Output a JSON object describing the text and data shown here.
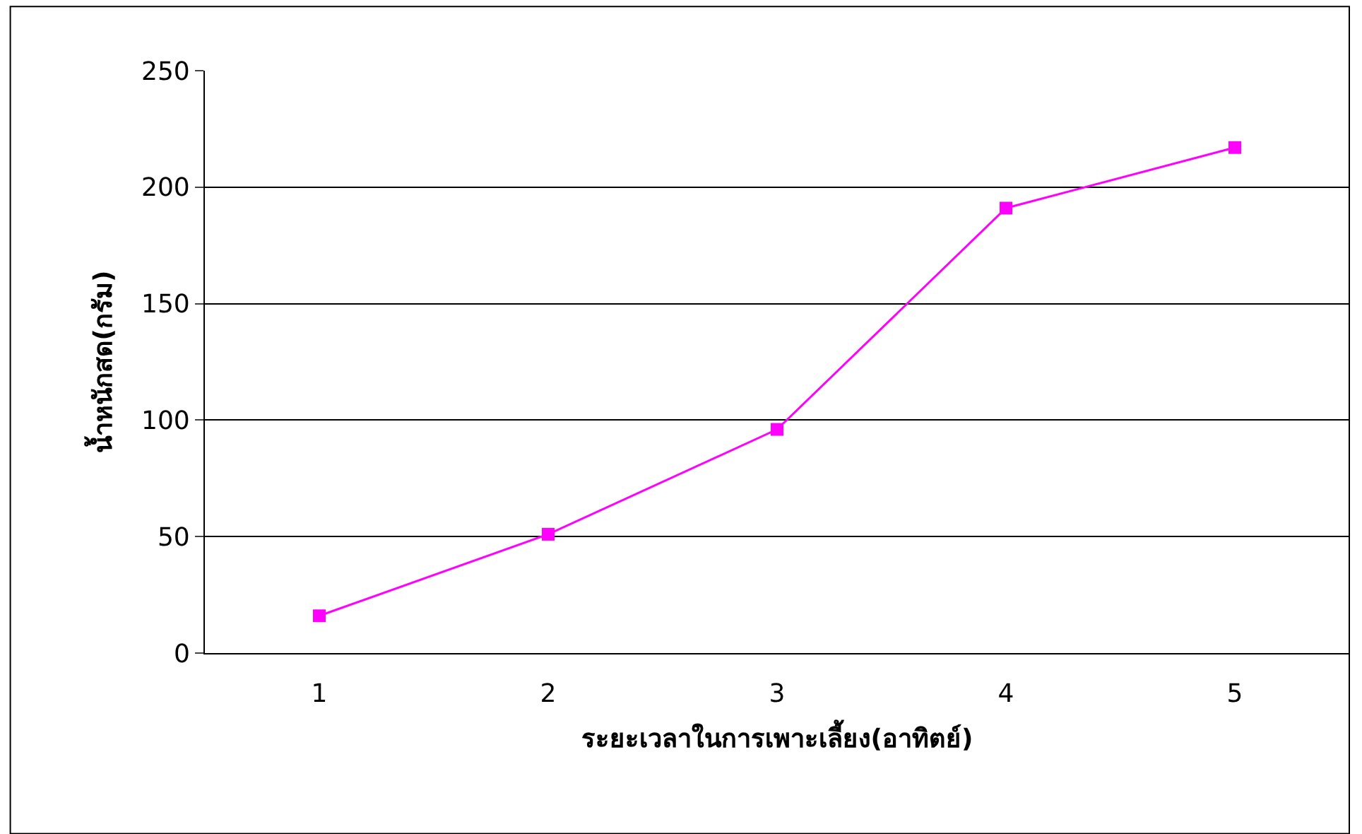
{
  "chart_data": {
    "type": "line",
    "xlabel": "ระยะเวลาในการเพาะเลี้ยง(อาทิตย์)",
    "ylabel": "น้ำหนักสด(กรัม)",
    "categories": [
      "1",
      "2",
      "3",
      "4",
      "5"
    ],
    "series": [
      {
        "color": "#ff00ff",
        "values": [
          16,
          51,
          96,
          191,
          217
        ]
      }
    ],
    "ylim": [
      0,
      250
    ],
    "yticks": [
      0,
      50,
      100,
      150,
      200,
      250
    ],
    "grid": "y",
    "marker": "square",
    "line_style": "solid",
    "legend": false
  }
}
